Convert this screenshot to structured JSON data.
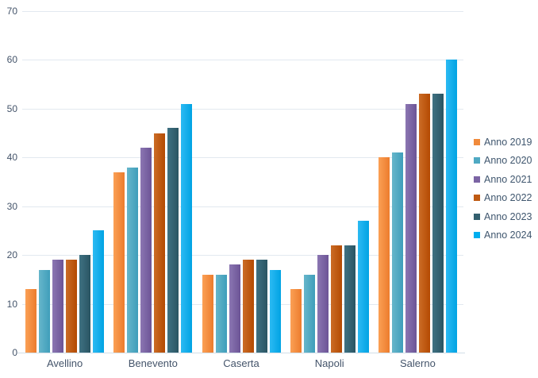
{
  "chart_data": {
    "type": "bar",
    "title": "",
    "categories": [
      "Avellino",
      "Benevento",
      "Caserta",
      "Napoli",
      "Salerno"
    ],
    "series": [
      {
        "name": "Anno 2019",
        "values": [
          13,
          37,
          16,
          13,
          40
        ],
        "fill": [
          "#fba055",
          "#ec7c2d"
        ],
        "legend_color": "#f18a3b"
      },
      {
        "name": "Anno 2020",
        "values": [
          17,
          38,
          16,
          16,
          41
        ],
        "fill": [
          "#66b6cb",
          "#3f9eba"
        ],
        "legend_color": "#4fa9c3"
      },
      {
        "name": "Anno 2021",
        "values": [
          19,
          42,
          18,
          20,
          51
        ],
        "fill": [
          "#8b76b2",
          "#6c5496"
        ],
        "legend_color": "#7b64a4"
      },
      {
        "name": "Anno 2022",
        "values": [
          19,
          45,
          19,
          22,
          53
        ],
        "fill": [
          "#cb6c26",
          "#b44a02"
        ],
        "legend_color": "#bf5a12"
      },
      {
        "name": "Anno 2023",
        "values": [
          20,
          46,
          19,
          22,
          53
        ],
        "fill": [
          "#3f7182",
          "#2a5563"
        ],
        "legend_color": "#33606f"
      },
      {
        "name": "Anno 2024",
        "values": [
          25,
          51,
          17,
          27,
          60
        ],
        "fill": [
          "#2cbaf3",
          "#00a3e3"
        ],
        "legend_color": "#00aeef"
      }
    ],
    "xlabel": "",
    "ylabel": "",
    "ylim": [
      0,
      70
    ],
    "yticks": [
      0,
      10,
      20,
      30,
      40,
      50,
      60,
      70
    ],
    "grid": "horizontal",
    "legend_position": "right"
  },
  "colors": {
    "background": "#ffffff",
    "gridline": "#e2e9f0",
    "axis_line": "#d2dee8",
    "tick_text": "#44546a",
    "category_text": "#44546a",
    "legend_text": "#3f566e"
  }
}
